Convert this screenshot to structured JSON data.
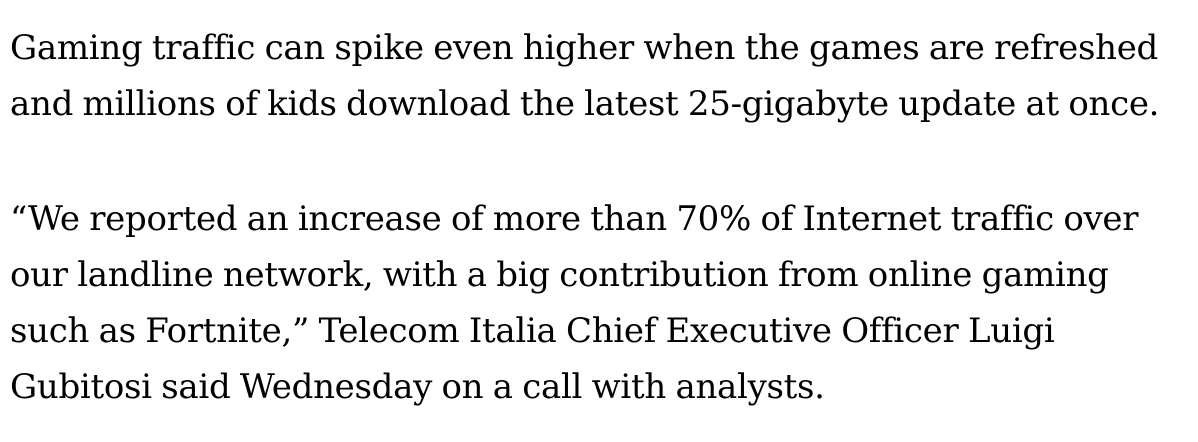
{
  "article": {
    "paragraphs": [
      "Gaming traffic can spike even higher when the games are refreshed and millions of kids download the latest 25-gigabyte update at once.",
      "“We reported an increase of more than 70% of Internet traffic over our landline network, with a big contribution from online gaming such as Fortnite,” Telecom Italia Chief Executive Officer Luigi Gubitosi said Wednesday on a call with analysts."
    ]
  }
}
